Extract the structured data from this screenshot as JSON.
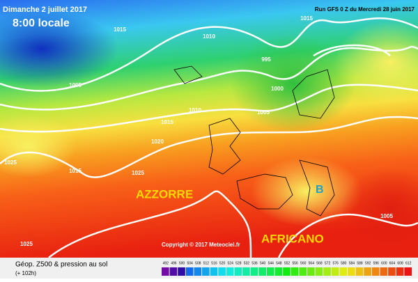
{
  "header": {
    "date": "Dimanche 2 juillet 2017",
    "time": "8:00 locale",
    "run": "Run GFS 0 Z du Mercredi 28 juin 2017"
  },
  "isobar_labels": [
    "1015",
    "1010",
    "1015",
    "995",
    "1005",
    "1000",
    "1010",
    "1005",
    "1015",
    "1020",
    "1025",
    "1015",
    "1025",
    "1005",
    "1025"
  ],
  "annotations": {
    "high": "AZZORRE",
    "high2": "AFRICANO",
    "low": "B",
    "copyright": "Copyright © 2017 Meteociel.fr"
  },
  "legend": {
    "title": "Géop. Z500 & pression au sol",
    "lead": "(+ 102h)",
    "scale": [
      "492",
      "496",
      "500",
      "504",
      "508",
      "512",
      "516",
      "520",
      "524",
      "528",
      "532",
      "536",
      "540",
      "544",
      "548",
      "552",
      "556",
      "560",
      "564",
      "568",
      "572",
      "576",
      "580",
      "584",
      "588",
      "592",
      "596",
      "600",
      "604",
      "608",
      "612"
    ]
  }
}
